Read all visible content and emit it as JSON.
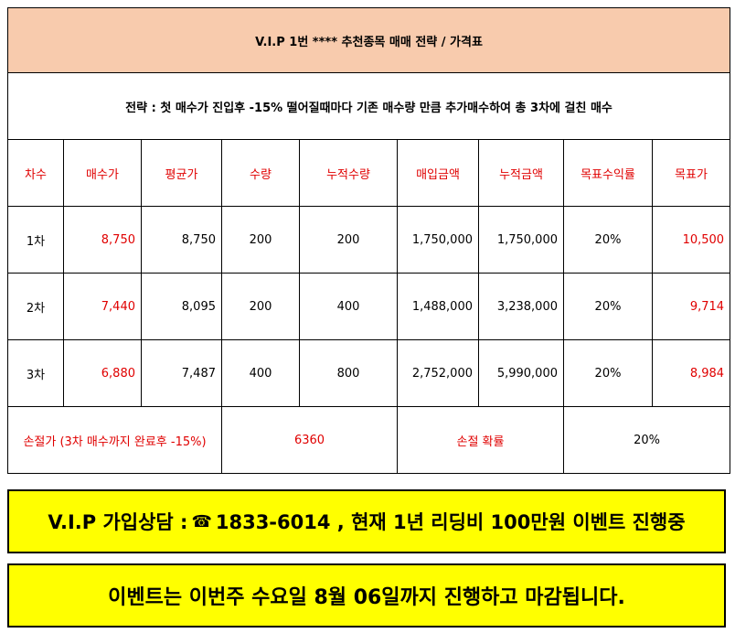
{
  "title": "V.I.P 1번 **** 추천종목  매매 전략 / 가격표",
  "strategy": "전략 : 첫 매수가 진입후 -15% 떨어질때마다 기존 매수량 만큼 추가매수하여 총 3차에 걸친 매수",
  "headers": [
    "차수",
    "매수가",
    "평균가",
    "수량",
    "누적수량",
    "매입금액",
    "누적금액",
    "목표수익률",
    "목표가"
  ],
  "rows": [
    {
      "stage": "1차",
      "buy_price": "8,750",
      "avg_price": "8,750",
      "qty": "200",
      "cum_qty": "200",
      "amount": "1,750,000",
      "cum_amount": "1,750,000",
      "target_rate": "20%",
      "target_price": "10,500"
    },
    {
      "stage": "2차",
      "buy_price": "7,440",
      "avg_price": "8,095",
      "qty": "200",
      "cum_qty": "400",
      "amount": "1,488,000",
      "cum_amount": "3,238,000",
      "target_rate": "20%",
      "target_price": "9,714"
    },
    {
      "stage": "3차",
      "buy_price": "6,880",
      "avg_price": "7,487",
      "qty": "400",
      "cum_qty": "800",
      "amount": "2,752,000",
      "cum_amount": "5,990,000",
      "target_rate": "20%",
      "target_price": "8,984"
    }
  ],
  "loss": {
    "label": "손절가 (3차 매수까지 완료후 -15%)",
    "value": "6360",
    "prob_label": "손절 확률",
    "prob_value": "20%"
  },
  "banner1": {
    "prefix": "V.I.P 가입상담  :",
    "phone_icon": "☎",
    "text": "1833-6014 , 현재 1년 리딩비 100만원 이벤트 진행중"
  },
  "banner2": {
    "text": "이벤트는 이번주 수요일 8월 06일까지 진행하고 마감됩니다."
  },
  "colors": {
    "title_bg": "#f8cbad",
    "accent_red": "#e00000",
    "banner_bg": "#ffff00"
  }
}
